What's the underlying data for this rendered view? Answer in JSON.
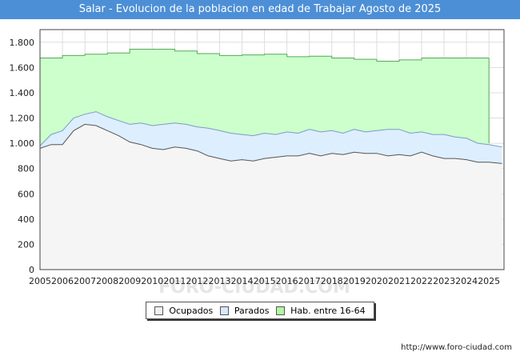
{
  "title": "Salar - Evolucion de la poblacion en edad de Trabajar Agosto de 2025",
  "url_text": "http://www.foro-ciudad.com",
  "watermark": "FORO-CIUDAD.COM",
  "colors": {
    "title_bg": "#4d8fd6",
    "hab_fill": "#ccffcc",
    "hab_line": "#55aa55",
    "parados_fill": "#ddeeff",
    "parados_line": "#7a9cc4",
    "ocupados_fill": "#f5f5f5",
    "ocupados_line": "#555555",
    "grid": "#dddddd"
  },
  "legend": [
    {
      "label": "Ocupados",
      "color": "#f0f0f0"
    },
    {
      "label": "Parados",
      "color": "#d6e8ff"
    },
    {
      "label": "Hab. entre 16-64",
      "color": "#b3f7a0"
    }
  ],
  "chart_data": {
    "type": "area",
    "title": "Salar - Evolucion de la poblacion en edad de Trabajar Agosto de 2025",
    "xlabel": "",
    "ylabel": "",
    "xlim": [
      2005,
      2025.67
    ],
    "ylim": [
      0,
      1900
    ],
    "grid": true,
    "legend_position": "bottom",
    "x_ticks": [
      "2005",
      "2006",
      "2007",
      "2008",
      "2009",
      "2010",
      "2011",
      "2012",
      "2013",
      "2014",
      "2015",
      "2016",
      "2017",
      "2018",
      "2019",
      "2020",
      "2021",
      "2022",
      "2023",
      "2024",
      "2025"
    ],
    "y_ticks": [
      0,
      200,
      400,
      600,
      800,
      1000,
      1200,
      1400,
      1600,
      1800
    ],
    "y_tick_labels": [
      "0",
      "200",
      "400",
      "600",
      "800",
      "1.000",
      "1.200",
      "1.400",
      "1.600",
      "1.800"
    ],
    "series": [
      {
        "name": "Hab. entre 16-64",
        "x": [
          2005,
          2006,
          2007,
          2008,
          2009,
          2010,
          2011,
          2012,
          2013,
          2014,
          2015,
          2016,
          2017,
          2018,
          2019,
          2020,
          2021,
          2022,
          2023,
          2024
        ],
        "values": [
          1675,
          1695,
          1705,
          1715,
          1745,
          1745,
          1730,
          1710,
          1695,
          1700,
          1705,
          1685,
          1690,
          1675,
          1665,
          1650,
          1660,
          1675,
          1675,
          1675
        ]
      },
      {
        "name": "Parados",
        "x": [
          2005,
          2005.5,
          2006,
          2006.5,
          2007,
          2007.5,
          2008,
          2008.5,
          2009,
          2009.5,
          2010,
          2010.5,
          2011,
          2011.5,
          2012,
          2012.5,
          2013,
          2013.5,
          2014,
          2014.5,
          2015,
          2015.5,
          2016,
          2016.5,
          2017,
          2017.5,
          2018,
          2018.5,
          2019,
          2019.5,
          2020,
          2020.5,
          2021,
          2021.5,
          2022,
          2022.5,
          2023,
          2023.5,
          2024,
          2024.5,
          2025,
          2025.58
        ],
        "values": [
          980,
          1070,
          1100,
          1200,
          1230,
          1250,
          1210,
          1180,
          1150,
          1160,
          1140,
          1150,
          1160,
          1150,
          1130,
          1120,
          1100,
          1080,
          1070,
          1060,
          1080,
          1070,
          1090,
          1080,
          1110,
          1090,
          1100,
          1080,
          1110,
          1090,
          1100,
          1110,
          1110,
          1080,
          1090,
          1070,
          1070,
          1050,
          1040,
          1000,
          990,
          970
        ]
      },
      {
        "name": "Ocupados",
        "x": [
          2005,
          2005.5,
          2006,
          2006.5,
          2007,
          2007.5,
          2008,
          2008.5,
          2009,
          2009.5,
          2010,
          2010.5,
          2011,
          2011.5,
          2012,
          2012.5,
          2013,
          2013.5,
          2014,
          2014.5,
          2015,
          2015.5,
          2016,
          2016.5,
          2017,
          2017.5,
          2018,
          2018.5,
          2019,
          2019.5,
          2020,
          2020.5,
          2021,
          2021.5,
          2022,
          2022.5,
          2023,
          2023.5,
          2024,
          2024.5,
          2025,
          2025.58
        ],
        "values": [
          960,
          990,
          990,
          1100,
          1150,
          1140,
          1100,
          1060,
          1010,
          990,
          960,
          950,
          970,
          960,
          940,
          900,
          880,
          860,
          870,
          860,
          880,
          890,
          900,
          900,
          920,
          900,
          920,
          910,
          930,
          920,
          920,
          900,
          910,
          900,
          930,
          900,
          880,
          880,
          870,
          850,
          850,
          840
        ]
      }
    ]
  }
}
